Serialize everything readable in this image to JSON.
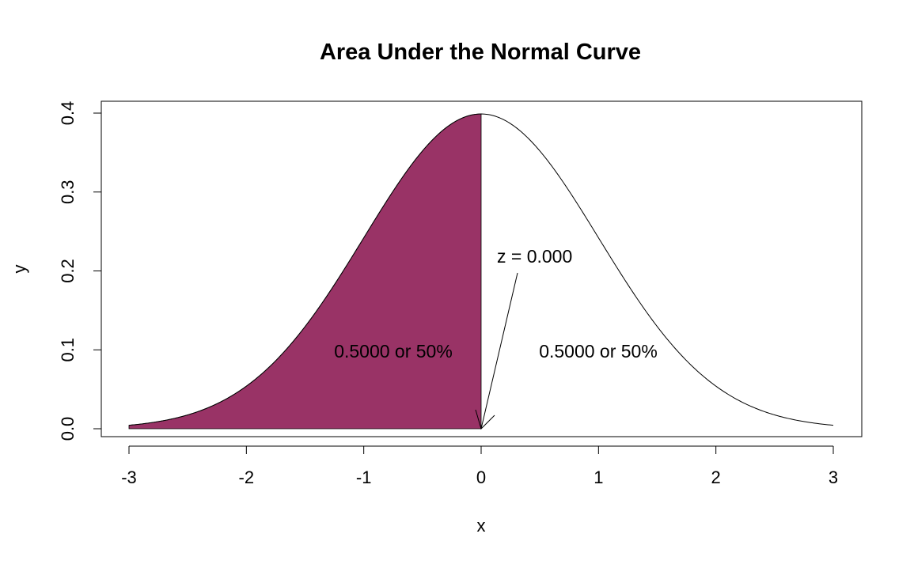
{
  "chart_data": {
    "type": "area",
    "title": "Area Under the Normal Curve",
    "xlabel": "x",
    "ylabel": "y",
    "xlim": [
      -3,
      3
    ],
    "ylim": [
      0,
      0.4
    ],
    "x_ticks": [
      -3,
      -2,
      -1,
      0,
      1,
      2,
      3
    ],
    "y_ticks": [
      0.0,
      0.1,
      0.2,
      0.3,
      0.4
    ],
    "x_tick_labels": [
      "-3",
      "-2",
      "-1",
      "0",
      "1",
      "2",
      "3"
    ],
    "y_tick_labels": [
      "0.0",
      "0.1",
      "0.2",
      "0.3",
      "0.4"
    ],
    "curve": {
      "name": "standard normal density",
      "mean": 0,
      "sd": 1,
      "x_from": -3,
      "x_to": 3
    },
    "shaded_region": {
      "x_from": -3,
      "x_to": 0,
      "color": "#993366"
    },
    "annotations": {
      "z_label": "z = 0.000",
      "left_area_label": "0.5000 or 50%",
      "right_area_label": "0.5000 or 50%"
    },
    "grid": false,
    "legend": "none"
  }
}
